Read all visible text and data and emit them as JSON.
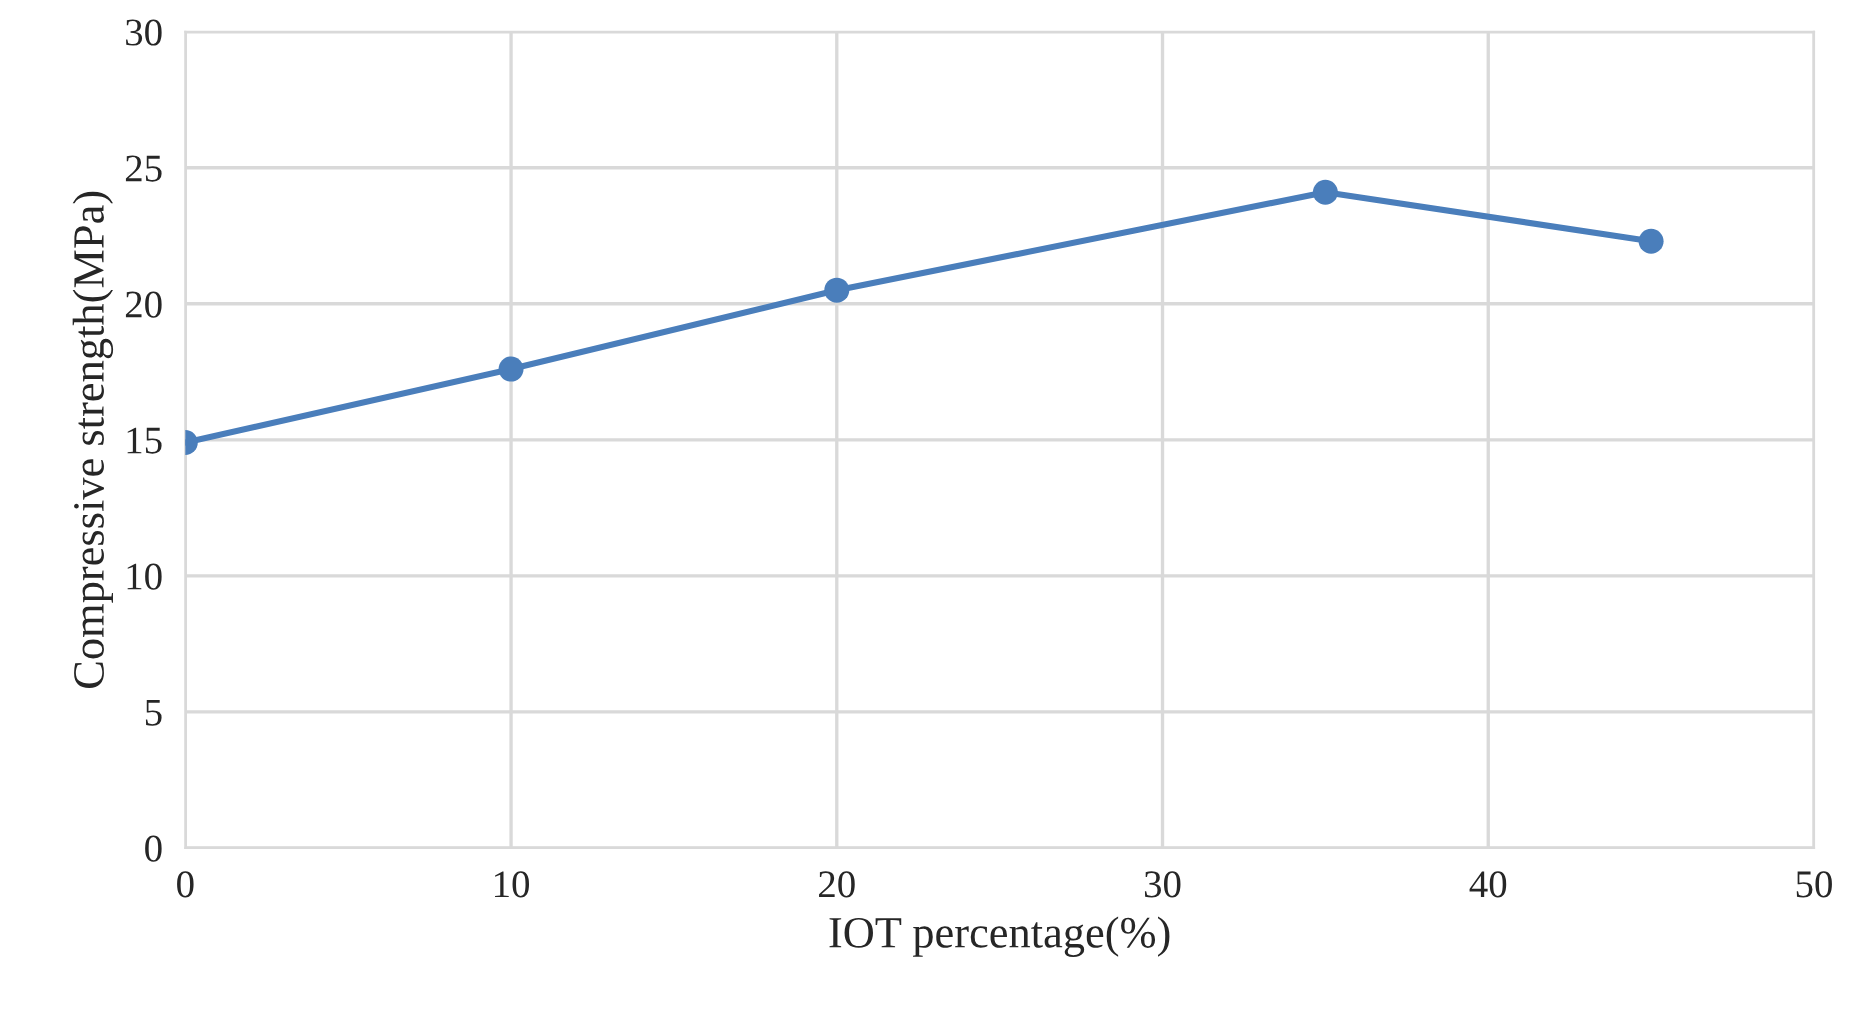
{
  "chart_data": {
    "type": "line",
    "xlabel": "IOT percentage(%)",
    "ylabel": "Compressive strength(MPa)",
    "x": [
      0,
      10,
      20,
      35,
      45
    ],
    "series": [
      {
        "color": "#4a7ebb",
        "values": [
          14.9,
          17.6,
          20.5,
          24.1,
          22.3
        ]
      }
    ],
    "xlim": [
      0,
      50
    ],
    "xticks": [
      0,
      10,
      20,
      30,
      40,
      50
    ],
    "ylim": [
      0,
      30
    ],
    "yticks": [
      0,
      5,
      10,
      15,
      20,
      25,
      30
    ],
    "grid": true,
    "marker": "circle",
    "line_style": "solid"
  }
}
